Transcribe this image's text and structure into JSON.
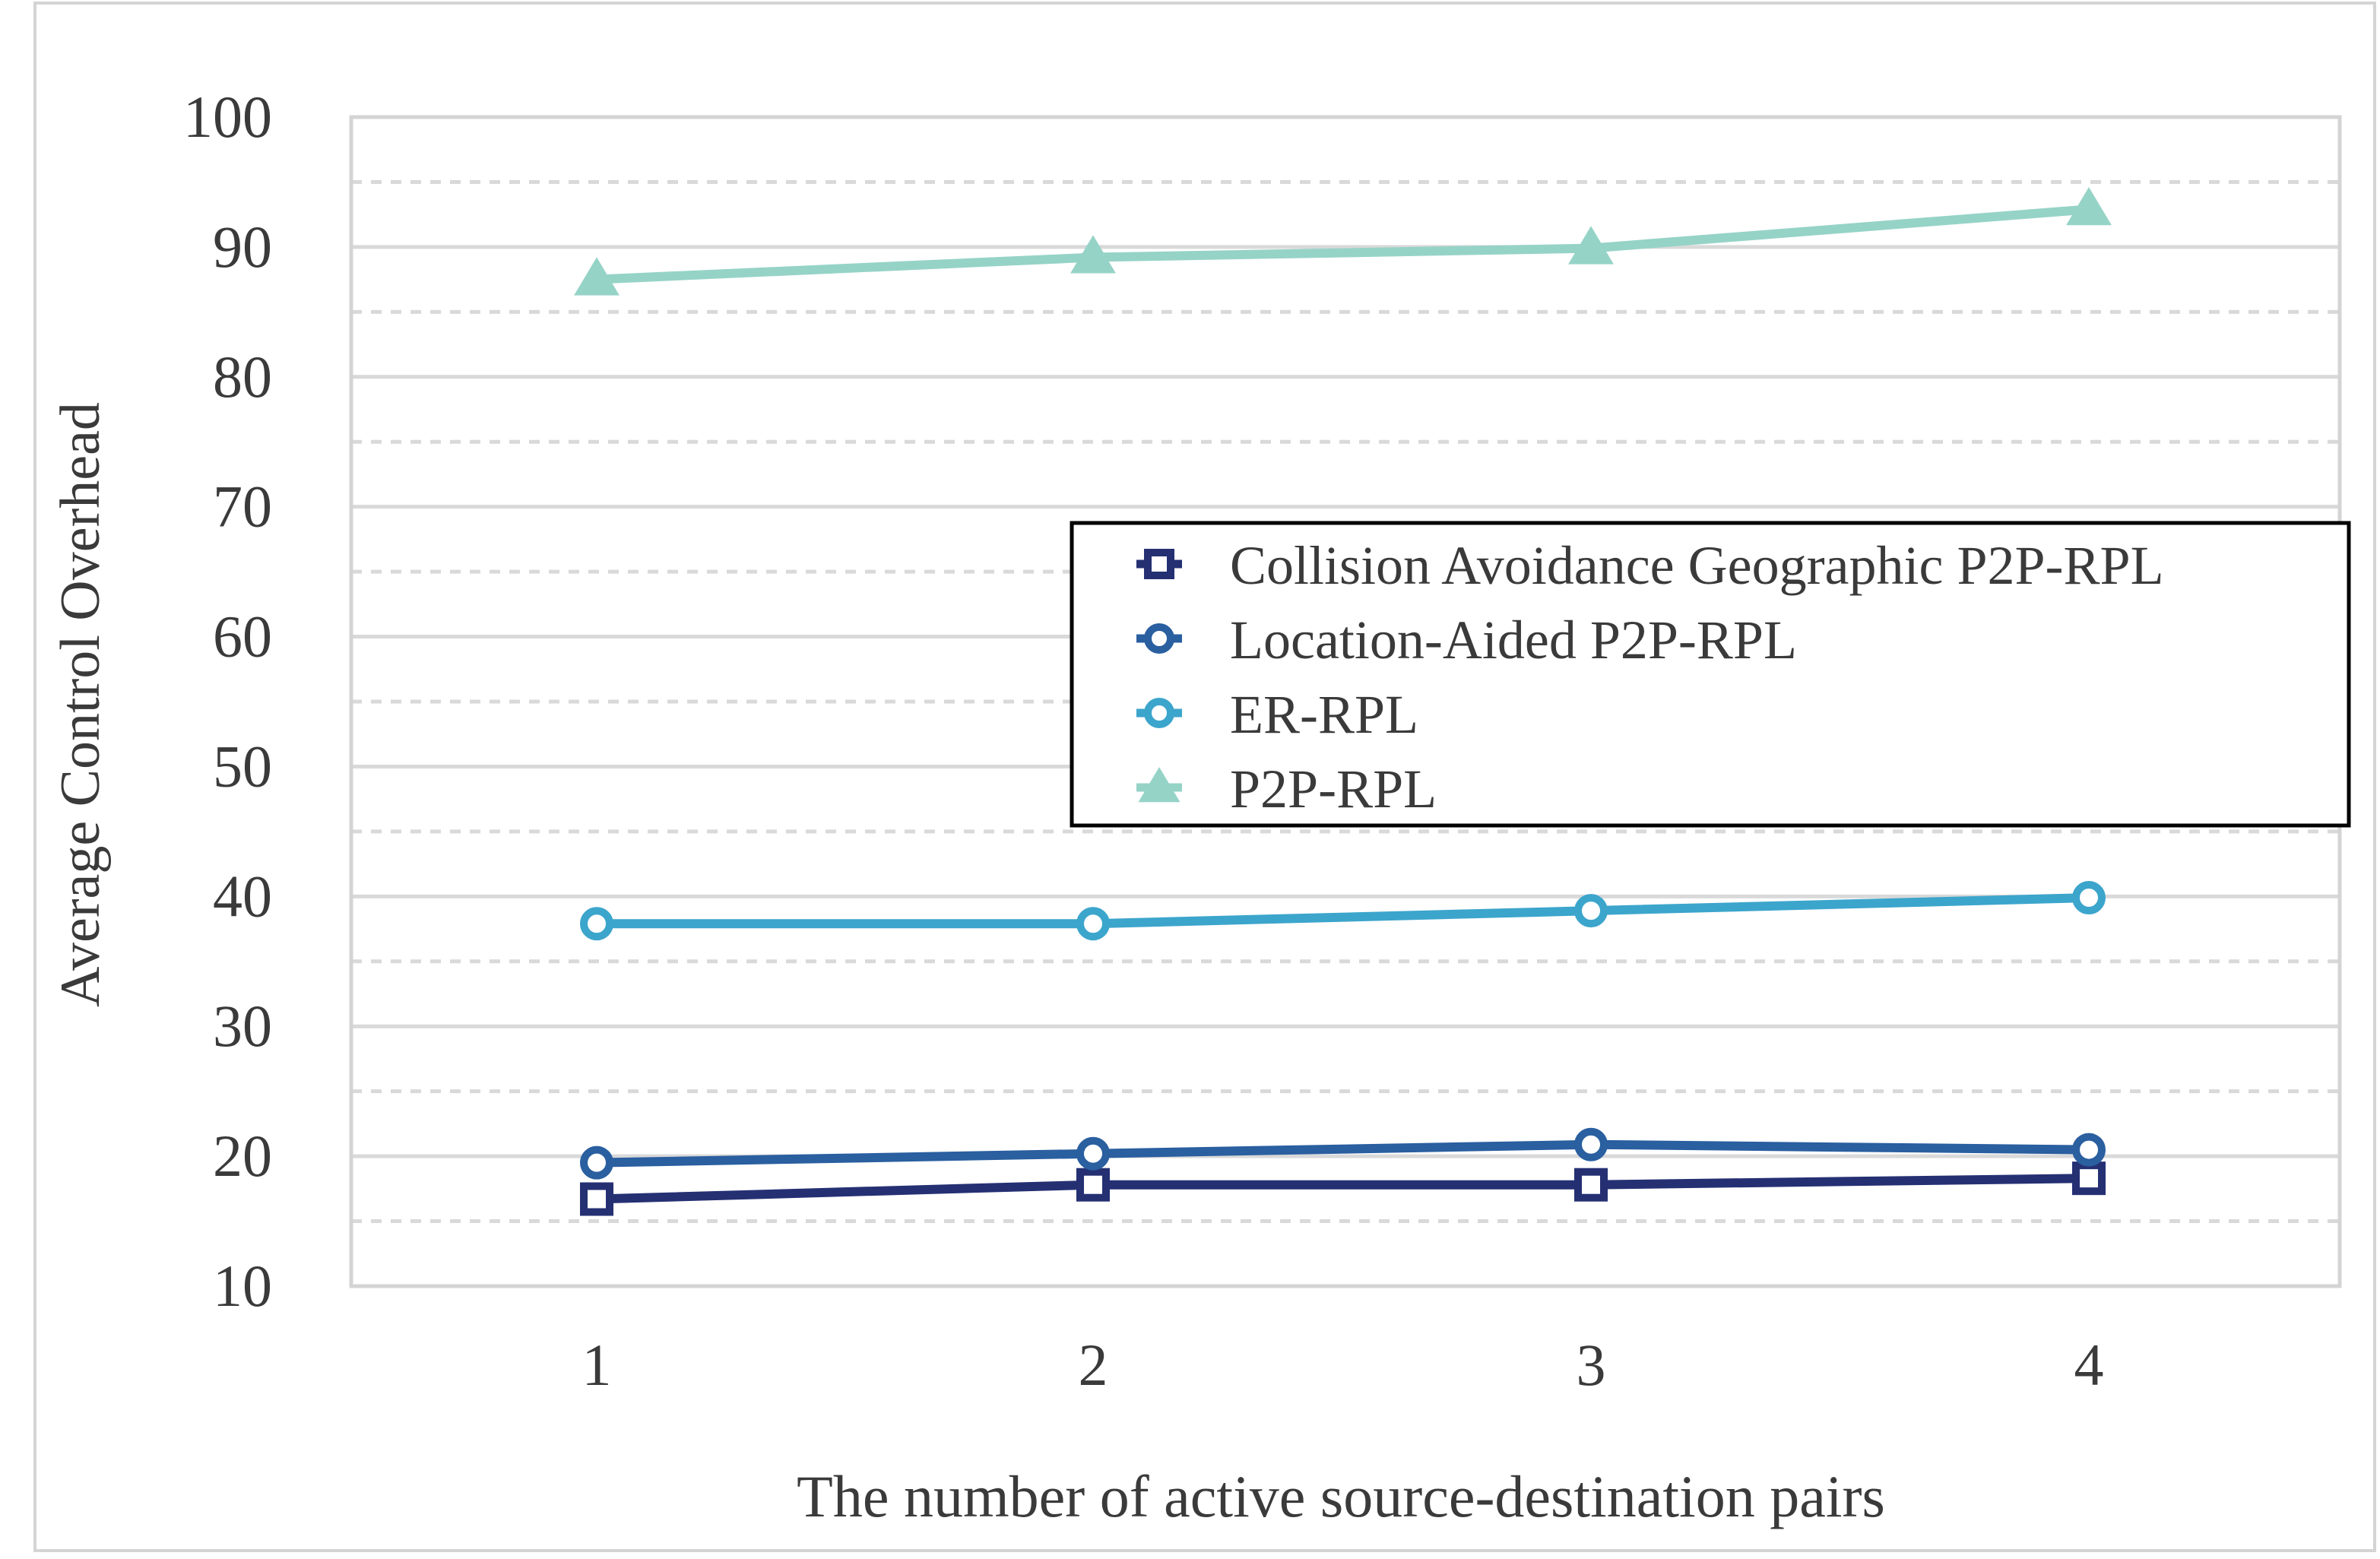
{
  "chart_data": {
    "type": "line",
    "title": "",
    "xlabel": "The number of active source-destination pairs",
    "ylabel": "Average Control Overhead",
    "x": [
      1,
      2,
      3,
      4
    ],
    "x_tick_labels": [
      "1",
      "2",
      "3",
      "4"
    ],
    "ylim": [
      10,
      100
    ],
    "y_ticks": [
      10,
      20,
      30,
      40,
      50,
      60,
      70,
      80,
      90,
      100
    ],
    "y_tick_labels": [
      "10",
      "20",
      "30",
      "40",
      "50",
      "60",
      "70",
      "80",
      "90",
      "100"
    ],
    "grid": true,
    "legend_position": "center-right",
    "series": [
      {
        "name": "Collision Avoidance Geographic P2P-RPL",
        "values": [
          16.7,
          17.8,
          17.8,
          18.3
        ],
        "color": "#253073",
        "marker": "square"
      },
      {
        "name": "Location-Aided P2P-RPL",
        "values": [
          19.5,
          20.2,
          20.9,
          20.5
        ],
        "color": "#2a5fa0",
        "marker": "circle"
      },
      {
        "name": "ER-RPL",
        "values": [
          37.9,
          37.9,
          38.9,
          39.9
        ],
        "color": "#3ca5cc",
        "marker": "circle"
      },
      {
        "name": "P2P-RPL",
        "values": [
          87.5,
          89.2,
          89.9,
          92.9
        ],
        "color": "#96d3c7",
        "marker": "triangle"
      }
    ]
  }
}
